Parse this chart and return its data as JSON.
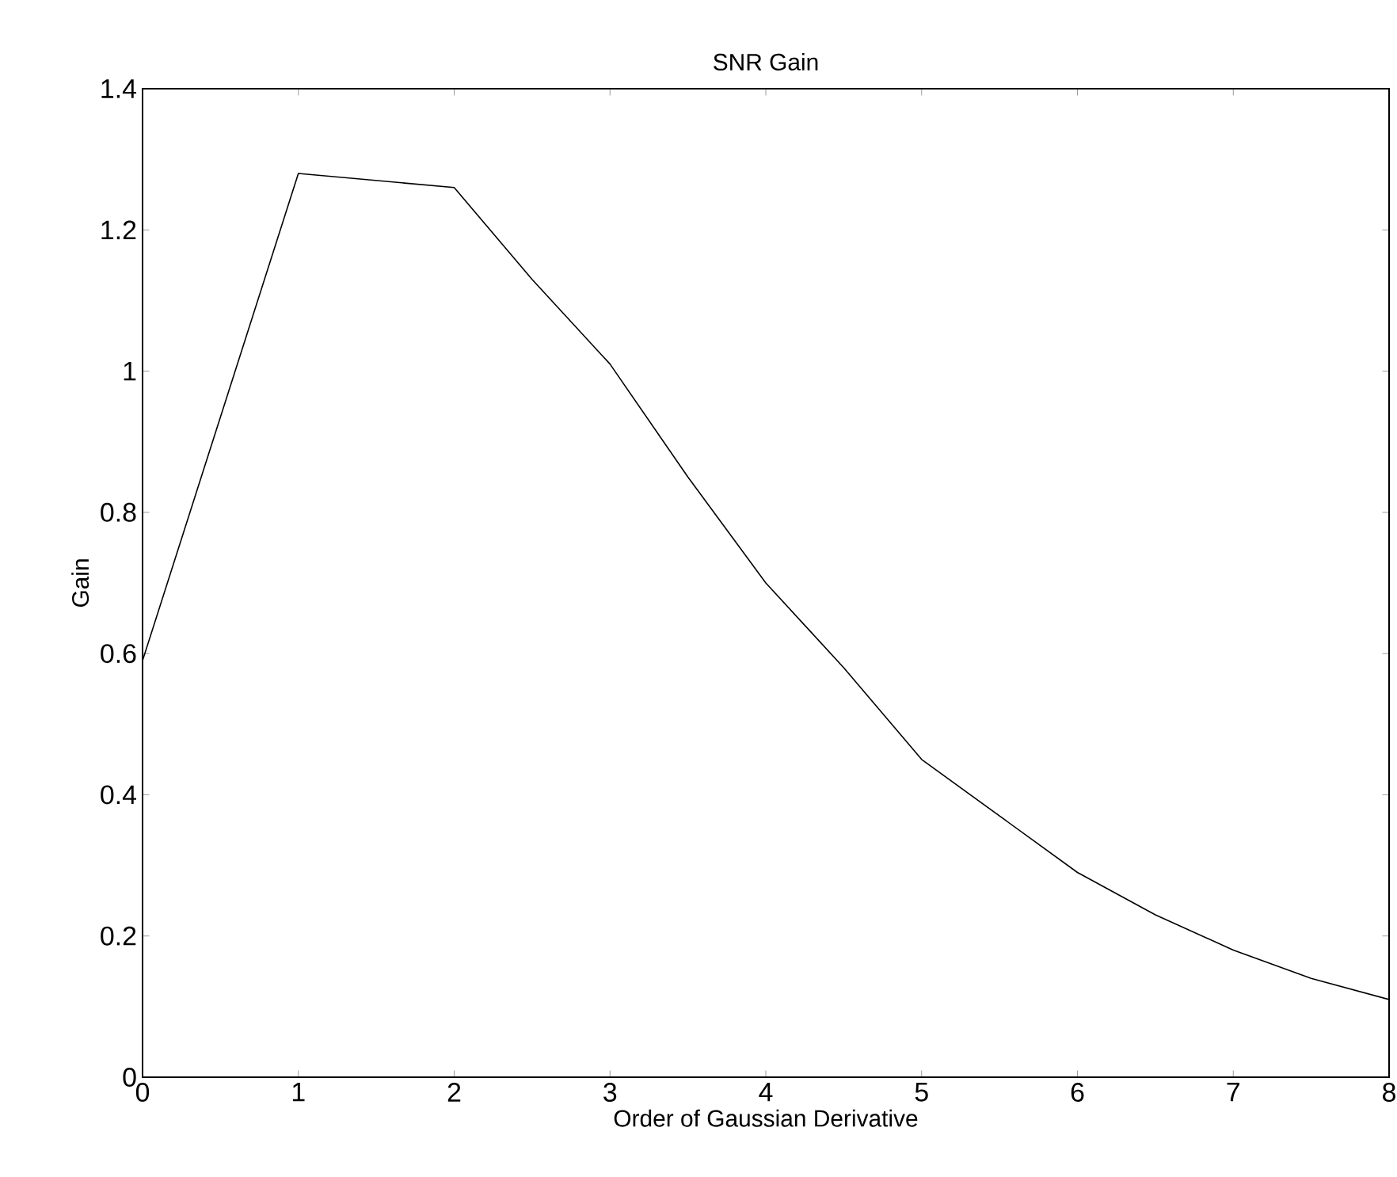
{
  "chart_data": {
    "type": "line",
    "title": "SNR Gain",
    "xlabel": "Order of Gaussian Derivative",
    "ylabel": "Gain",
    "x": [
      0,
      1,
      1.5,
      2,
      2.5,
      3,
      3.5,
      4,
      4.5,
      5,
      5.5,
      6,
      6.5,
      7,
      7.5,
      8
    ],
    "series": [
      {
        "color": "#000000",
        "values": [
          0.59,
          1.28,
          1.27,
          1.26,
          1.13,
          1.01,
          0.85,
          0.7,
          0.58,
          0.45,
          0.37,
          0.29,
          0.23,
          0.18,
          0.14,
          0.11
        ]
      }
    ],
    "xlim": [
      0,
      8
    ],
    "xticks": [
      0,
      1,
      2,
      3,
      4,
      5,
      6,
      7,
      8
    ],
    "ylim": [
      0,
      1.4
    ],
    "yticks": [
      0,
      0.2,
      0.4,
      0.6,
      0.8,
      1,
      1.2,
      1.4
    ],
    "grid": false,
    "marker": "none",
    "line_style": "solid"
  }
}
